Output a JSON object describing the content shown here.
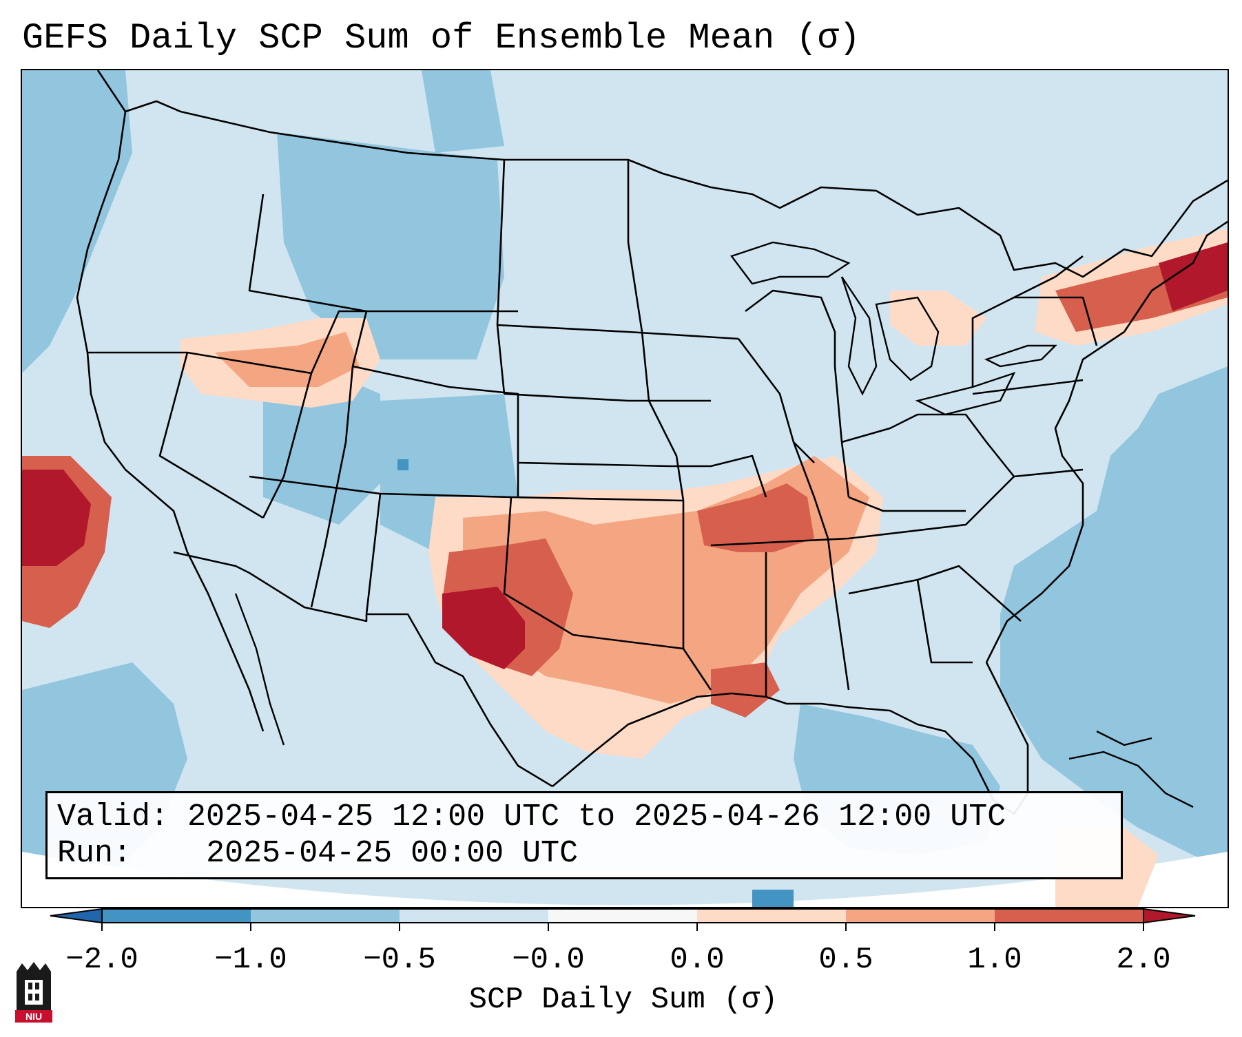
{
  "title": "GEFS Daily SCP Sum of Ensemble Mean (σ)",
  "info": {
    "valid_label": "Valid:",
    "valid_value": "2025-04-25 12:00 UTC to 2025-04-26 12:00 UTC",
    "run_label": "Run:",
    "run_value": "2025-04-25 00:00 UTC"
  },
  "colorbar": {
    "label": "SCP Daily Sum (σ)",
    "ticks": [
      "−2.0",
      "−1.0",
      "−0.5",
      "−0.0",
      "0.0",
      "0.5",
      "1.0",
      "2.0"
    ],
    "colors": {
      "below_min": "#2166ac",
      "bin_-2_-1": "#4393c3",
      "bin_-1_-0.5": "#92c5de",
      "bin_-0.5_0": "#d1e5f0",
      "bin_0_0": "#f7f7f7",
      "bin_0_0.5": "#fddbc7",
      "bin_0.5_1": "#f4a582",
      "bin_1_2": "#d6604d",
      "above_max": "#b2182b"
    }
  },
  "logo": {
    "text": "NIU",
    "icon": "niu-tower-logo-icon"
  }
}
